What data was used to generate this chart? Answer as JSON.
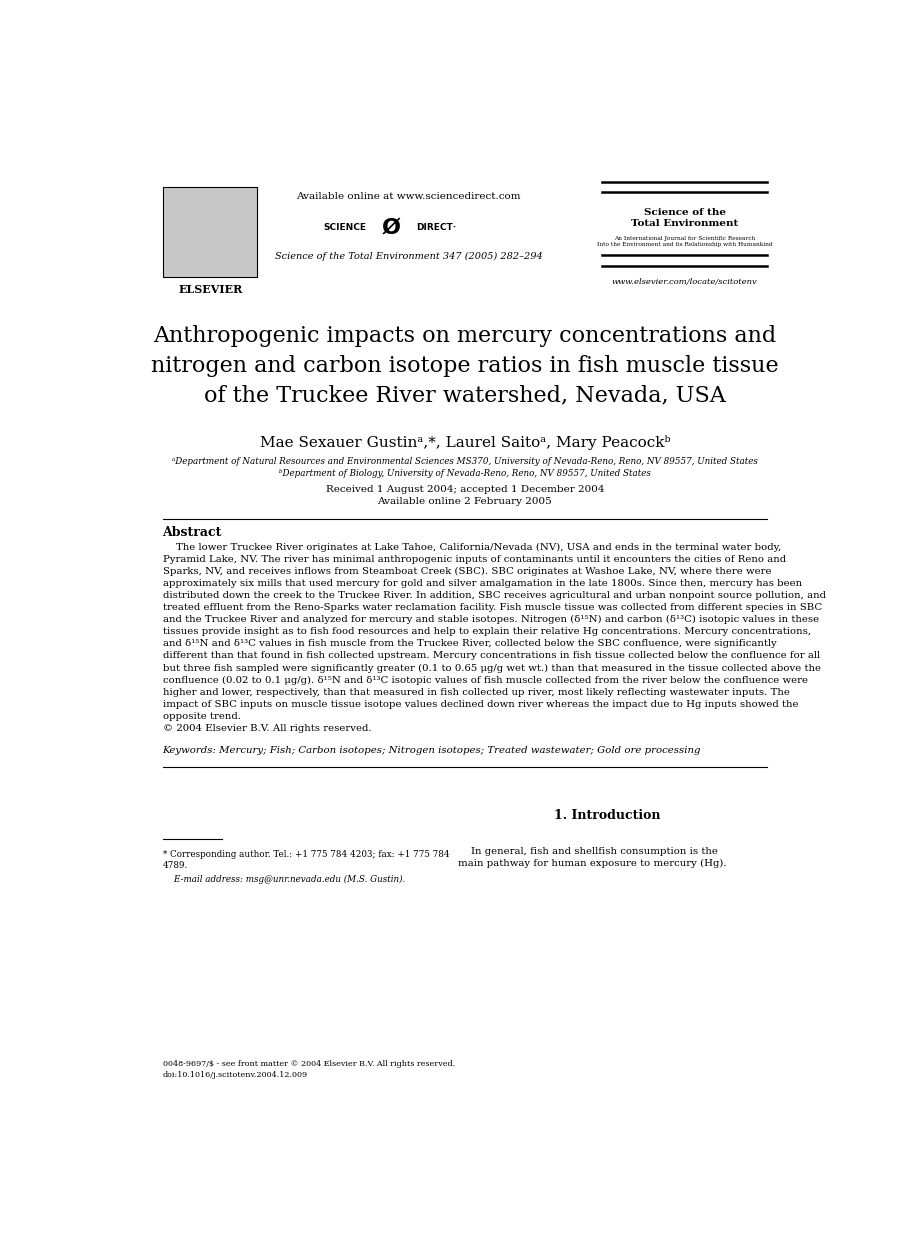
{
  "bg_color": "#ffffff",
  "page_width": 9.07,
  "page_height": 12.38,
  "header": {
    "available_online": "Available online at www.sciencedirect.com",
    "journal_line": "Science of the Total Environment 347 (2005) 282–294",
    "journal_name_right": "Science of the\nTotal Environment",
    "journal_subtitle_right1": "An International Journal for Scientific Research",
    "journal_subtitle_right2": "Into the Environment and its Relationship with Humankind",
    "elsevier_label": "ELSEVIER",
    "website": "www.elsevier.com/locate/scitotenv"
  },
  "title": "Anthropogenic impacts on mercury concentrations and\nnitrogen and carbon isotope ratios in fish muscle tissue\nof the Truckee River watershed, Nevada, USA",
  "authors": "Mae Sexauer Gustinᵃ,*, Laurel Saitoᵃ, Mary Peacockᵇ",
  "affil_a": "ᵃDepartment of Natural Resources and Environmental Sciences MS370, University of Nevada-Reno, Reno, NV 89557, United States",
  "affil_b": "ᵇDepartment of Biology, University of Nevada-Reno, Reno, NV 89557, United States",
  "received": "Received 1 August 2004; accepted 1 December 2004",
  "available": "Available online 2 February 2005",
  "abstract_heading": "Abstract",
  "abstract_lines": [
    "    The lower Truckee River originates at Lake Tahoe, California/Nevada (NV), USA and ends in the terminal water body,",
    "Pyramid Lake, NV. The river has minimal anthropogenic inputs of contaminants until it encounters the cities of Reno and",
    "Sparks, NV, and receives inflows from Steamboat Creek (SBC). SBC originates at Washoe Lake, NV, where there were",
    "approximately six mills that used mercury for gold and silver amalgamation in the late 1800s. Since then, mercury has been",
    "distributed down the creek to the Truckee River. In addition, SBC receives agricultural and urban nonpoint source pollution, and",
    "treated effluent from the Reno-Sparks water reclamation facility. Fish muscle tissue was collected from different species in SBC",
    "and the Truckee River and analyzed for mercury and stable isotopes. Nitrogen (δ¹⁵N) and carbon (δ¹³C) isotopic values in these",
    "tissues provide insight as to fish food resources and help to explain their relative Hg concentrations. Mercury concentrations,",
    "and δ¹⁵N and δ¹³C values in fish muscle from the Truckee River, collected below the SBC confluence, were significantly",
    "different than that found in fish collected upstream. Mercury concentrations in fish tissue collected below the confluence for all",
    "but three fish sampled were significantly greater (0.1 to 0.65 μg/g wet wt.) than that measured in the tissue collected above the",
    "confluence (0.02 to 0.1 μg/g). δ¹⁵N and δ¹³C isotopic values of fish muscle collected from the river below the confluence were",
    "higher and lower, respectively, than that measured in fish collected up river, most likely reflecting wastewater inputs. The",
    "impact of SBC inputs on muscle tissue isotope values declined down river whereas the impact due to Hg inputs showed the",
    "opposite trend.",
    "© 2004 Elsevier B.V. All rights reserved."
  ],
  "keywords": "Keywords: Mercury; Fish; Carbon isotopes; Nitrogen isotopes; Treated wastewater; Gold ore processing",
  "section_heading": "1. Introduction",
  "intro_line1": "    In general, fish and shellfish consumption is the",
  "intro_line2": "main pathway for human exposure to mercury (Hg).",
  "footnote_line1": "* Corresponding author. Tel.: +1 775 784 4203; fax: +1 775 784",
  "footnote_line2": "4789.",
  "footnote_email": "    E-mail address: msg@unr.nevada.edu (M.S. Gustin).",
  "footer_line1": "0048-9697/$ - see front matter © 2004 Elsevier B.V. All rights reserved.",
  "footer_line2": "doi:10.1016/j.scitotenv.2004.12.009"
}
